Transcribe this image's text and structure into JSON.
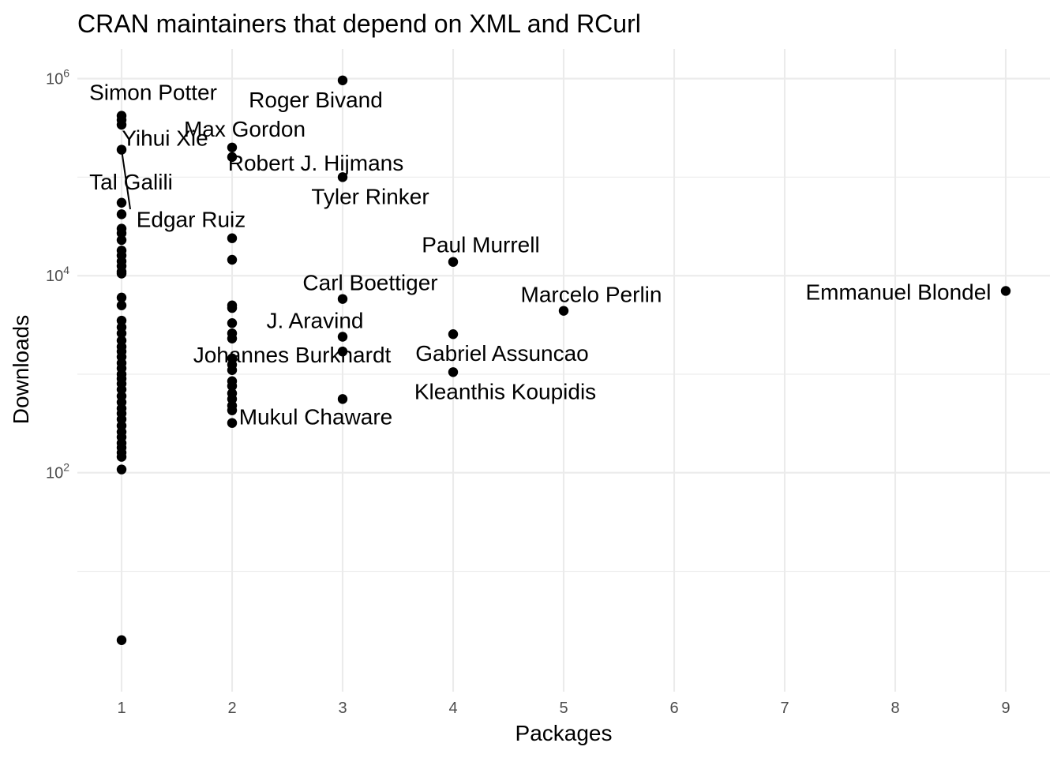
{
  "chart_data": {
    "type": "scatter",
    "title": "CRAN maintainers that depend on XML and RCurl",
    "xlabel": "Packages",
    "ylabel": "Downloads",
    "y_scale": "log10",
    "xlim": [
      0.6,
      9.4
    ],
    "ylim": [
      0.6,
      2000000
    ],
    "x_ticks": [
      1,
      2,
      3,
      4,
      5,
      6,
      7,
      8,
      9
    ],
    "y_ticks": [
      {
        "value": 100,
        "base": "10",
        "exp": "2"
      },
      {
        "value": 10000,
        "base": "10",
        "exp": "4"
      },
      {
        "value": 1000000,
        "base": "10",
        "exp": "6"
      }
    ],
    "y_minor": [
      10,
      1000,
      100000
    ],
    "grid": true,
    "point_color": "#000000",
    "points": [
      {
        "x": 1,
        "y": 420000
      },
      {
        "x": 1,
        "y": 380000
      },
      {
        "x": 1,
        "y": 340000
      },
      {
        "x": 1,
        "y": 190000
      },
      {
        "x": 1,
        "y": 55000
      },
      {
        "x": 1,
        "y": 42000
      },
      {
        "x": 1,
        "y": 30000
      },
      {
        "x": 1,
        "y": 27000
      },
      {
        "x": 1,
        "y": 23000
      },
      {
        "x": 1,
        "y": 18000
      },
      {
        "x": 1,
        "y": 16000
      },
      {
        "x": 1,
        "y": 14000
      },
      {
        "x": 1,
        "y": 12500
      },
      {
        "x": 1,
        "y": 11000
      },
      {
        "x": 1,
        "y": 10500
      },
      {
        "x": 1,
        "y": 6000
      },
      {
        "x": 1,
        "y": 5000
      },
      {
        "x": 1,
        "y": 3500
      },
      {
        "x": 1,
        "y": 3000
      },
      {
        "x": 1,
        "y": 2600
      },
      {
        "x": 1,
        "y": 2200
      },
      {
        "x": 1,
        "y": 1900
      },
      {
        "x": 1,
        "y": 1700
      },
      {
        "x": 1,
        "y": 1500
      },
      {
        "x": 1,
        "y": 1300
      },
      {
        "x": 1,
        "y": 1150
      },
      {
        "x": 1,
        "y": 1000
      },
      {
        "x": 1,
        "y": 900
      },
      {
        "x": 1,
        "y": 800
      },
      {
        "x": 1,
        "y": 700
      },
      {
        "x": 1,
        "y": 600
      },
      {
        "x": 1,
        "y": 520
      },
      {
        "x": 1,
        "y": 450
      },
      {
        "x": 1,
        "y": 400
      },
      {
        "x": 1,
        "y": 350
      },
      {
        "x": 1,
        "y": 300
      },
      {
        "x": 1,
        "y": 260
      },
      {
        "x": 1,
        "y": 230
      },
      {
        "x": 1,
        "y": 200
      },
      {
        "x": 1,
        "y": 180
      },
      {
        "x": 1,
        "y": 160
      },
      {
        "x": 1,
        "y": 145
      },
      {
        "x": 1,
        "y": 108
      },
      {
        "x": 1,
        "y": 2
      },
      {
        "x": 2,
        "y": 200000
      },
      {
        "x": 2,
        "y": 160000
      },
      {
        "x": 2,
        "y": 24000
      },
      {
        "x": 2,
        "y": 14500
      },
      {
        "x": 2,
        "y": 5000
      },
      {
        "x": 2,
        "y": 4700
      },
      {
        "x": 2,
        "y": 3300
      },
      {
        "x": 2,
        "y": 2600
      },
      {
        "x": 2,
        "y": 2300
      },
      {
        "x": 2,
        "y": 1450
      },
      {
        "x": 2,
        "y": 1250
      },
      {
        "x": 2,
        "y": 1100
      },
      {
        "x": 2,
        "y": 850
      },
      {
        "x": 2,
        "y": 760
      },
      {
        "x": 2,
        "y": 640
      },
      {
        "x": 2,
        "y": 560
      },
      {
        "x": 2,
        "y": 480
      },
      {
        "x": 2,
        "y": 430
      },
      {
        "x": 2,
        "y": 320
      },
      {
        "x": 3,
        "y": 960000
      },
      {
        "x": 3,
        "y": 100000
      },
      {
        "x": 3,
        "y": 5800
      },
      {
        "x": 3,
        "y": 2400
      },
      {
        "x": 3,
        "y": 1700
      },
      {
        "x": 3,
        "y": 560
      },
      {
        "x": 4,
        "y": 13800
      },
      {
        "x": 4,
        "y": 2550
      },
      {
        "x": 4,
        "y": 1050
      },
      {
        "x": 5,
        "y": 4400
      },
      {
        "x": 9,
        "y": 7000
      }
    ],
    "annotations": [
      {
        "text": "Simon Potter",
        "x": 1,
        "y": 420000
      },
      {
        "text": "Yihui Xie",
        "x": 1,
        "y": 190000
      },
      {
        "text": "Tal Galili",
        "x": 1,
        "y": 55000
      },
      {
        "text": "Edgar Ruiz",
        "x": 1,
        "y": 42000
      },
      {
        "text": "Max Gordon",
        "x": 2,
        "y": 200000
      },
      {
        "text": "Robert J. Hijmans",
        "x": 2,
        "y": 160000
      },
      {
        "text": "Johannes Burkhardt",
        "x": 2,
        "y": 1250
      },
      {
        "text": "Mukul Chaware",
        "x": 2,
        "y": 320
      },
      {
        "text": "Roger Bivand",
        "x": 3,
        "y": 960000
      },
      {
        "text": "Tyler Rinker",
        "x": 3,
        "y": 100000
      },
      {
        "text": "Carl Boettiger",
        "x": 3,
        "y": 5800
      },
      {
        "text": "J. Aravind",
        "x": 3,
        "y": 2400
      },
      {
        "text": "Paul Murrell",
        "x": 4,
        "y": 13800
      },
      {
        "text": "Gabriel Assuncao",
        "x": 4,
        "y": 2550
      },
      {
        "text": "Kleanthis Koupidis",
        "x": 4,
        "y": 1050
      },
      {
        "text": "Marcelo Perlin",
        "x": 5,
        "y": 4400
      },
      {
        "text": "Emmanuel Blondel",
        "x": 9,
        "y": 7000
      }
    ]
  }
}
